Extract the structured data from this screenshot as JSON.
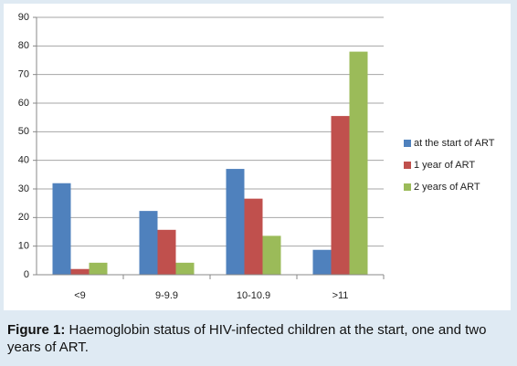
{
  "chart_data": {
    "type": "bar",
    "categories": [
      "<9",
      "9-9.9",
      "10-10.9",
      ">11"
    ],
    "series": [
      {
        "name": "at the start of ART",
        "color": "#4f81bd",
        "values": [
          32,
          22.3,
          37,
          8.7
        ]
      },
      {
        "name": "1 year of ART",
        "color": "#c0504d",
        "values": [
          2,
          15.7,
          26.6,
          55.5
        ]
      },
      {
        "name": "2 years of ART",
        "color": "#9bbb59",
        "values": [
          4.2,
          4.2,
          13.6,
          78
        ]
      }
    ],
    "ylim": [
      0,
      90
    ],
    "yticks": [
      0,
      10,
      20,
      30,
      40,
      50,
      60,
      70,
      80,
      90
    ],
    "grid": true,
    "legend": "right"
  },
  "caption": {
    "label": "Figure 1:",
    "text": "Haemoglobin status of HIV-infected children at the start, one and two years of ART."
  }
}
